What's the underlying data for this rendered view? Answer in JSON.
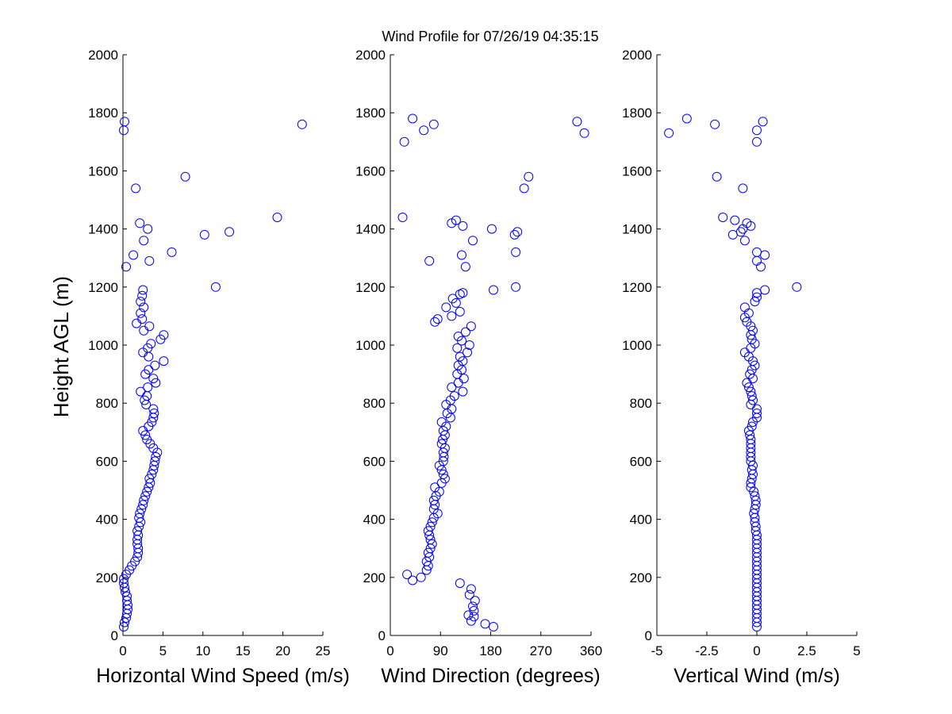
{
  "figure": {
    "title": "Wind Profile for  07/26/19 04:35:15",
    "ylabel": "Height AGL (m)",
    "marker_color": "#0000ff"
  },
  "chart_data": [
    {
      "type": "scatter",
      "xlabel": "Horizontal Wind Speed (m/s)",
      "ylabel": "Height AGL (m)",
      "xlim": [
        0,
        25
      ],
      "ylim": [
        0,
        2000
      ],
      "xticks": [
        0,
        5,
        10,
        15,
        20,
        25
      ],
      "xtick_labels": [
        "0",
        "5",
        "10",
        "15",
        "20",
        "25"
      ],
      "yticks": [
        0,
        200,
        400,
        600,
        800,
        1000,
        1200,
        1400,
        1600,
        1800,
        2000
      ],
      "ytick_labels": [
        "0",
        "200",
        "400",
        "600",
        "800",
        "1000",
        "1200",
        "1400",
        "1600",
        "1800",
        "2000"
      ],
      "grid": false,
      "points": [
        [
          0.1,
          30
        ],
        [
          0.2,
          45
        ],
        [
          0.4,
          60
        ],
        [
          0.5,
          75
        ],
        [
          0.6,
          90
        ],
        [
          0.6,
          105
        ],
        [
          0.5,
          120
        ],
        [
          0.5,
          135
        ],
        [
          0.3,
          150
        ],
        [
          0.2,
          165
        ],
        [
          0.1,
          180
        ],
        [
          0.1,
          195
        ],
        [
          0.4,
          210
        ],
        [
          0.8,
          225
        ],
        [
          1.1,
          240
        ],
        [
          1.5,
          255
        ],
        [
          1.8,
          270
        ],
        [
          1.9,
          285
        ],
        [
          1.9,
          300
        ],
        [
          1.8,
          315
        ],
        [
          1.8,
          330
        ],
        [
          1.9,
          345
        ],
        [
          1.8,
          360
        ],
        [
          2.0,
          375
        ],
        [
          2.2,
          390
        ],
        [
          2.0,
          405
        ],
        [
          2.1,
          420
        ],
        [
          2.3,
          435
        ],
        [
          2.5,
          450
        ],
        [
          2.6,
          465
        ],
        [
          2.8,
          480
        ],
        [
          3.0,
          495
        ],
        [
          3.2,
          510
        ],
        [
          3.4,
          525
        ],
        [
          3.3,
          540
        ],
        [
          3.6,
          555
        ],
        [
          3.8,
          570
        ],
        [
          3.9,
          585
        ],
        [
          4.0,
          600
        ],
        [
          4.1,
          615
        ],
        [
          4.3,
          630
        ],
        [
          3.8,
          645
        ],
        [
          3.4,
          660
        ],
        [
          3.0,
          675
        ],
        [
          2.8,
          690
        ],
        [
          2.5,
          705
        ],
        [
          3.2,
          720
        ],
        [
          3.6,
          735
        ],
        [
          3.8,
          750
        ],
        [
          3.9,
          765
        ],
        [
          3.8,
          780
        ],
        [
          2.9,
          795
        ],
        [
          2.7,
          810
        ],
        [
          3.0,
          825
        ],
        [
          2.2,
          840
        ],
        [
          3.1,
          855
        ],
        [
          4.1,
          870
        ],
        [
          3.8,
          885
        ],
        [
          2.8,
          900
        ],
        [
          3.2,
          915
        ],
        [
          4.0,
          930
        ],
        [
          5.1,
          945
        ],
        [
          3.2,
          960
        ],
        [
          2.5,
          975
        ],
        [
          3.1,
          990
        ],
        [
          3.5,
          1005
        ],
        [
          4.7,
          1020
        ],
        [
          5.1,
          1035
        ],
        [
          2.6,
          1050
        ],
        [
          3.3,
          1065
        ],
        [
          1.7,
          1075
        ],
        [
          2.4,
          1090
        ],
        [
          2.2,
          1110
        ],
        [
          2.6,
          1130
        ],
        [
          2.2,
          1150
        ],
        [
          2.4,
          1170
        ],
        [
          2.5,
          1190
        ],
        [
          11.6,
          1200
        ],
        [
          0.4,
          1270
        ],
        [
          3.3,
          1290
        ],
        [
          1.3,
          1310
        ],
        [
          6.1,
          1320
        ],
        [
          2.6,
          1360
        ],
        [
          10.2,
          1380
        ],
        [
          13.3,
          1390
        ],
        [
          3.1,
          1400
        ],
        [
          2.1,
          1420
        ],
        [
          19.3,
          1440
        ],
        [
          1.6,
          1540
        ],
        [
          7.8,
          1580
        ],
        [
          22.4,
          1760
        ],
        [
          0.1,
          1740
        ],
        [
          0.2,
          1770
        ]
      ]
    },
    {
      "type": "scatter",
      "xlabel": "Wind Direction (degrees)",
      "ylabel": "",
      "xlim": [
        0,
        360
      ],
      "ylim": [
        0,
        2000
      ],
      "xticks": [
        0,
        90,
        180,
        270,
        360
      ],
      "xtick_labels": [
        "0",
        "90",
        "180",
        "270",
        "360"
      ],
      "yticks": [
        0,
        200,
        400,
        600,
        800,
        1000,
        1200,
        1400,
        1600,
        1800,
        2000
      ],
      "ytick_labels": [
        "0",
        "200",
        "400",
        "600",
        "800",
        "1000",
        "1200",
        "1400",
        "1600",
        "1800",
        "2000"
      ],
      "grid": false,
      "points": [
        [
          185,
          30
        ],
        [
          170,
          40
        ],
        [
          145,
          50
        ],
        [
          150,
          65
        ],
        [
          140,
          70
        ],
        [
          150,
          85
        ],
        [
          148,
          100
        ],
        [
          152,
          120
        ],
        [
          142,
          140
        ],
        [
          145,
          160
        ],
        [
          125,
          180
        ],
        [
          40,
          190
        ],
        [
          55,
          200
        ],
        [
          30,
          210
        ],
        [
          65,
          225
        ],
        [
          68,
          240
        ],
        [
          65,
          255
        ],
        [
          70,
          270
        ],
        [
          68,
          285
        ],
        [
          72,
          300
        ],
        [
          75,
          315
        ],
        [
          72,
          330
        ],
        [
          70,
          345
        ],
        [
          68,
          360
        ],
        [
          72,
          375
        ],
        [
          75,
          390
        ],
        [
          78,
          405
        ],
        [
          85,
          420
        ],
        [
          78,
          435
        ],
        [
          80,
          450
        ],
        [
          78,
          465
        ],
        [
          82,
          480
        ],
        [
          88,
          495
        ],
        [
          80,
          510
        ],
        [
          92,
          525
        ],
        [
          98,
          540
        ],
        [
          95,
          555
        ],
        [
          92,
          570
        ],
        [
          88,
          585
        ],
        [
          95,
          600
        ],
        [
          96,
          615
        ],
        [
          95,
          630
        ],
        [
          98,
          645
        ],
        [
          92,
          660
        ],
        [
          94,
          675
        ],
        [
          98,
          690
        ],
        [
          95,
          705
        ],
        [
          100,
          720
        ],
        [
          92,
          735
        ],
        [
          108,
          750
        ],
        [
          102,
          765
        ],
        [
          110,
          780
        ],
        [
          100,
          795
        ],
        [
          108,
          810
        ],
        [
          115,
          825
        ],
        [
          130,
          840
        ],
        [
          110,
          855
        ],
        [
          122,
          870
        ],
        [
          132,
          885
        ],
        [
          120,
          900
        ],
        [
          128,
          915
        ],
        [
          122,
          930
        ],
        [
          130,
          945
        ],
        [
          125,
          960
        ],
        [
          138,
          975
        ],
        [
          120,
          990
        ],
        [
          142,
          1000
        ],
        [
          128,
          1015
        ],
        [
          122,
          1030
        ],
        [
          135,
          1045
        ],
        [
          145,
          1065
        ],
        [
          80,
          1080
        ],
        [
          85,
          1090
        ],
        [
          110,
          1100
        ],
        [
          125,
          1115
        ],
        [
          100,
          1130
        ],
        [
          118,
          1145
        ],
        [
          112,
          1160
        ],
        [
          125,
          1175
        ],
        [
          130,
          1180
        ],
        [
          135,
          1270
        ],
        [
          185,
          1190
        ],
        [
          70,
          1290
        ],
        [
          128,
          1310
        ],
        [
          148,
          1360
        ],
        [
          223,
          1380
        ],
        [
          228,
          1390
        ],
        [
          182,
          1400
        ],
        [
          130,
          1410
        ],
        [
          110,
          1420
        ],
        [
          118,
          1430
        ],
        [
          22,
          1440
        ],
        [
          240,
          1540
        ],
        [
          248,
          1580
        ],
        [
          25,
          1700
        ],
        [
          60,
          1740
        ],
        [
          78,
          1760
        ],
        [
          335,
          1770
        ],
        [
          348,
          1730
        ],
        [
          40,
          1780
        ],
        [
          225,
          1200
        ],
        [
          225,
          1320
        ]
      ]
    },
    {
      "type": "scatter",
      "xlabel": "Vertical Wind (m/s)",
      "ylabel": "",
      "xlim": [
        -5,
        5
      ],
      "ylim": [
        0,
        2000
      ],
      "xticks": [
        -5,
        -2.5,
        0,
        2.5,
        5
      ],
      "xtick_labels": [
        "-5",
        "-2.5",
        "0",
        "2.5",
        "5"
      ],
      "yticks": [
        0,
        200,
        400,
        600,
        800,
        1000,
        1200,
        1400,
        1600,
        1800,
        2000
      ],
      "ytick_labels": [
        "0",
        "200",
        "400",
        "600",
        "800",
        "1000",
        "1200",
        "1400",
        "1600",
        "1800",
        "2000"
      ],
      "grid": false,
      "points": [
        [
          0.0,
          30
        ],
        [
          0.0,
          45
        ],
        [
          0.0,
          60
        ],
        [
          0.0,
          75
        ],
        [
          0.0,
          90
        ],
        [
          0.0,
          105
        ],
        [
          0.0,
          120
        ],
        [
          0.0,
          135
        ],
        [
          0.0,
          150
        ],
        [
          0.0,
          165
        ],
        [
          0.0,
          180
        ],
        [
          0.0,
          195
        ],
        [
          0.0,
          210
        ],
        [
          0.0,
          225
        ],
        [
          0.0,
          240
        ],
        [
          0.0,
          255
        ],
        [
          0.0,
          270
        ],
        [
          0.0,
          285
        ],
        [
          0.0,
          300
        ],
        [
          0.0,
          315
        ],
        [
          0.0,
          330
        ],
        [
          0.0,
          345
        ],
        [
          -0.05,
          360
        ],
        [
          -0.05,
          375
        ],
        [
          -0.1,
          390
        ],
        [
          -0.1,
          405
        ],
        [
          -0.15,
          420
        ],
        [
          -0.1,
          435
        ],
        [
          -0.05,
          450
        ],
        [
          -0.05,
          465
        ],
        [
          -0.1,
          480
        ],
        [
          -0.15,
          495
        ],
        [
          -0.3,
          510
        ],
        [
          -0.3,
          525
        ],
        [
          -0.25,
          540
        ],
        [
          -0.2,
          555
        ],
        [
          -0.25,
          570
        ],
        [
          -0.2,
          585
        ],
        [
          -0.3,
          600
        ],
        [
          -0.3,
          615
        ],
        [
          -0.3,
          630
        ],
        [
          -0.3,
          645
        ],
        [
          -0.3,
          660
        ],
        [
          -0.3,
          675
        ],
        [
          -0.35,
          690
        ],
        [
          -0.4,
          705
        ],
        [
          -0.25,
          720
        ],
        [
          -0.2,
          735
        ],
        [
          0.0,
          750
        ],
        [
          0.0,
          765
        ],
        [
          0.0,
          780
        ],
        [
          -0.3,
          795
        ],
        [
          -0.2,
          810
        ],
        [
          -0.25,
          825
        ],
        [
          -0.3,
          840
        ],
        [
          -0.4,
          855
        ],
        [
          -0.5,
          870
        ],
        [
          -0.2,
          885
        ],
        [
          -0.35,
          900
        ],
        [
          -0.25,
          915
        ],
        [
          -0.1,
          930
        ],
        [
          -0.2,
          945
        ],
        [
          -0.4,
          960
        ],
        [
          -0.6,
          975
        ],
        [
          -0.3,
          990
        ],
        [
          -0.1,
          1005
        ],
        [
          -0.25,
          1020
        ],
        [
          -0.3,
          1035
        ],
        [
          -0.2,
          1050
        ],
        [
          -0.3,
          1065
        ],
        [
          -0.5,
          1080
        ],
        [
          -0.6,
          1095
        ],
        [
          -0.4,
          1110
        ],
        [
          -0.6,
          1130
        ],
        [
          -0.1,
          1150
        ],
        [
          0.0,
          1165
        ],
        [
          0.0,
          1180
        ],
        [
          0.4,
          1190
        ],
        [
          2.0,
          1200
        ],
        [
          0.2,
          1270
        ],
        [
          0.0,
          1290
        ],
        [
          0.4,
          1310
        ],
        [
          0.0,
          1320
        ],
        [
          -0.6,
          1360
        ],
        [
          -1.2,
          1380
        ],
        [
          -0.8,
          1390
        ],
        [
          -0.7,
          1400
        ],
        [
          -0.3,
          1410
        ],
        [
          -0.5,
          1420
        ],
        [
          -1.1,
          1430
        ],
        [
          -1.7,
          1440
        ],
        [
          -0.7,
          1540
        ],
        [
          -2.0,
          1580
        ],
        [
          0.0,
          1700
        ],
        [
          -4.4,
          1730
        ],
        [
          0.0,
          1740
        ],
        [
          -2.1,
          1760
        ],
        [
          0.3,
          1770
        ],
        [
          -3.5,
          1780
        ]
      ]
    }
  ]
}
